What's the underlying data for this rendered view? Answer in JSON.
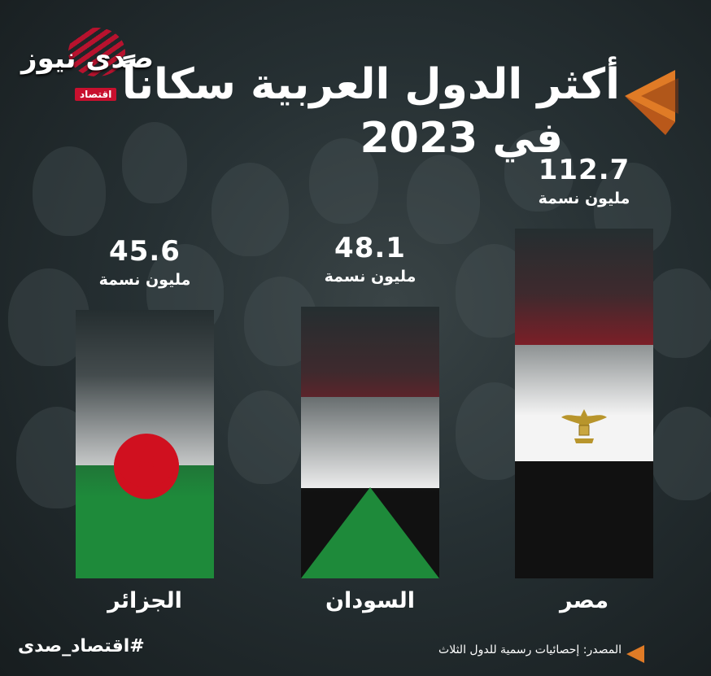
{
  "logo": {
    "brand": "صدى نيوز",
    "sub": "اقتصاد"
  },
  "title": {
    "line1": "أكثر الدول العربية سكاناً",
    "line2": "في 2023"
  },
  "chart_data": {
    "type": "bar",
    "categories": [
      "مصر",
      "السودان",
      "الجزائر"
    ],
    "values": [
      112.7,
      48.1,
      45.6
    ],
    "value_labels": [
      "112.7",
      "48.1",
      "45.6"
    ],
    "unit": "مليون نسمة",
    "title": "أكثر الدول العربية سكاناً في 2023"
  },
  "colors": {
    "red": "#d0101f",
    "green": "#1e8a3a",
    "white": "#f4f4f4",
    "black": "#111111",
    "eagle": "#b8952c",
    "accent": "#e07b26"
  },
  "footer": {
    "hashtag": "#اقتصاد_صدى",
    "source": "المصدر: إحصائيات رسمية للدول الثلاث"
  }
}
